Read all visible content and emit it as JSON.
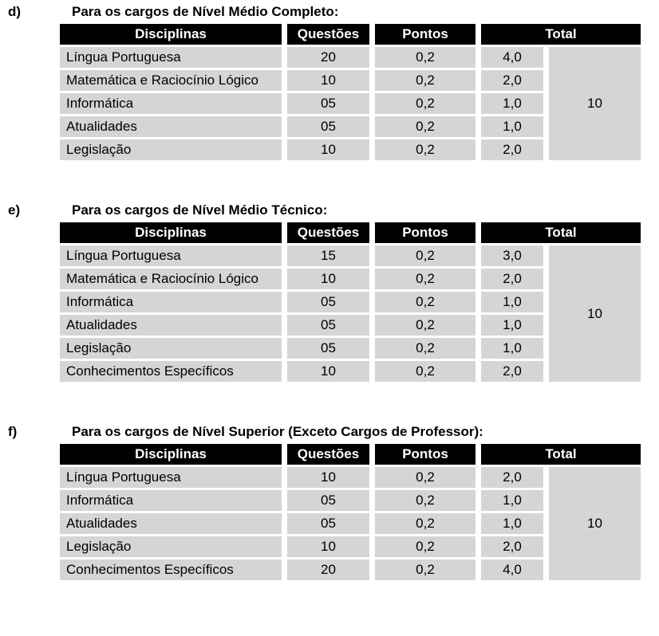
{
  "colors": {
    "header_bg": "#000000",
    "header_text": "#ffffff",
    "cell_bg": "#d5d5d5",
    "text": "#000000",
    "page_bg": "#ffffff"
  },
  "sections": [
    {
      "label": "d)",
      "title": "Para os cargos de Nível Médio Completo:",
      "table": {
        "headers": {
          "disciplinas": "Disciplinas",
          "questoes": "Questões",
          "pontos": "Pontos",
          "total": "Total"
        },
        "rows": [
          {
            "disciplina": "Língua Portuguesa",
            "questoes": "20",
            "pontos": "0,2",
            "total": "4,0"
          },
          {
            "disciplina": "Matemática e Raciocínio Lógico",
            "questoes": "10",
            "pontos": "0,2",
            "total": "2,0"
          },
          {
            "disciplina": "Informática",
            "questoes": "05",
            "pontos": "0,2",
            "total": "1,0"
          },
          {
            "disciplina": "Atualidades",
            "questoes": "05",
            "pontos": "0,2",
            "total": "1,0"
          },
          {
            "disciplina": "Legislação",
            "questoes": "10",
            "pontos": "0,2",
            "total": "2,0"
          }
        ],
        "grand_total": "10"
      }
    },
    {
      "label": "e)",
      "title": "Para os cargos de Nível Médio Técnico:",
      "table": {
        "headers": {
          "disciplinas": "Disciplinas",
          "questoes": "Questões",
          "pontos": "Pontos",
          "total": "Total"
        },
        "rows": [
          {
            "disciplina": "Língua Portuguesa",
            "questoes": "15",
            "pontos": "0,2",
            "total": "3,0"
          },
          {
            "disciplina": "Matemática e Raciocínio Lógico",
            "questoes": "10",
            "pontos": "0,2",
            "total": "2,0"
          },
          {
            "disciplina": "Informática",
            "questoes": "05",
            "pontos": "0,2",
            "total": "1,0"
          },
          {
            "disciplina": "Atualidades",
            "questoes": "05",
            "pontos": "0,2",
            "total": "1,0"
          },
          {
            "disciplina": "Legislação",
            "questoes": "05",
            "pontos": "0,2",
            "total": "1,0"
          },
          {
            "disciplina": "Conhecimentos Específicos",
            "questoes": "10",
            "pontos": "0,2",
            "total": "2,0"
          }
        ],
        "grand_total": "10"
      }
    },
    {
      "label": "f)",
      "title": "Para os cargos de Nível Superior (Exceto Cargos de Professor):",
      "table": {
        "headers": {
          "disciplinas": "Disciplinas",
          "questoes": "Questões",
          "pontos": "Pontos",
          "total": "Total"
        },
        "rows": [
          {
            "disciplina": "Língua Portuguesa",
            "questoes": "10",
            "pontos": "0,2",
            "total": "2,0"
          },
          {
            "disciplina": "Informática",
            "questoes": "05",
            "pontos": "0,2",
            "total": "1,0"
          },
          {
            "disciplina": "Atualidades",
            "questoes": "05",
            "pontos": "0,2",
            "total": "1,0"
          },
          {
            "disciplina": "Legislação",
            "questoes": "10",
            "pontos": "0,2",
            "total": "2,0"
          },
          {
            "disciplina": "Conhecimentos Específicos",
            "questoes": "20",
            "pontos": "0,2",
            "total": "4,0"
          }
        ],
        "grand_total": "10"
      }
    }
  ]
}
